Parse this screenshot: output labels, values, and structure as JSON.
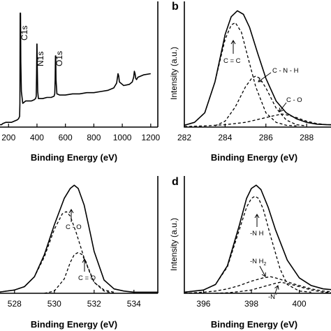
{
  "chart_data": [
    {
      "panel": "",
      "type": "line",
      "xlabel": "Binding Energy (eV)",
      "ylabel": "",
      "xticks": [
        200,
        400,
        600,
        800,
        1000,
        1200
      ],
      "xlim": [
        130,
        1250
      ],
      "ylim": [
        0,
        1
      ],
      "series": [
        {
          "style": "solid",
          "x": [
            130,
            150,
            160,
            180,
            200,
            220,
            240,
            260,
            270,
            278,
            280,
            282,
            284,
            286,
            290,
            300,
            320,
            340,
            360,
            380,
            390,
            395,
            397,
            399,
            400,
            402,
            405,
            410,
            440,
            470,
            500,
            520,
            525,
            528,
            530,
            532,
            534,
            540,
            560,
            600,
            650,
            700,
            750,
            800,
            850,
            900,
            940,
            960,
            965,
            970,
            975,
            980,
            990,
            1000,
            1010,
            1050,
            1070,
            1080,
            1085,
            1090,
            1095,
            1100,
            1110,
            1150,
            1200
          ],
          "y": [
            0.02,
            0.02,
            0.03,
            0.04,
            0.04,
            0.04,
            0.05,
            0.06,
            0.07,
            0.09,
            0.2,
            0.96,
            0.96,
            0.55,
            0.3,
            0.2,
            0.22,
            0.22,
            0.22,
            0.23,
            0.24,
            0.26,
            0.45,
            0.7,
            0.7,
            0.5,
            0.3,
            0.24,
            0.24,
            0.25,
            0.25,
            0.26,
            0.28,
            0.4,
            0.6,
            0.6,
            0.4,
            0.28,
            0.27,
            0.27,
            0.28,
            0.28,
            0.29,
            0.29,
            0.3,
            0.31,
            0.33,
            0.37,
            0.41,
            0.45,
            0.43,
            0.38,
            0.37,
            0.36,
            0.35,
            0.36,
            0.38,
            0.42,
            0.47,
            0.45,
            0.41,
            0.4,
            0.42,
            0.44,
            0.45
          ]
        }
      ],
      "annotations": [
        {
          "text": "C1s",
          "x": 284,
          "y": 0.96
        },
        {
          "text": "N1s",
          "x": 400,
          "y": 0.7
        },
        {
          "text": "O1s",
          "x": 531,
          "y": 0.6
        }
      ]
    },
    {
      "panel": "b",
      "type": "line",
      "xlabel": "Binding Energy (eV)",
      "ylabel": "Intensity (a.u.)",
      "xticks": [
        282,
        284,
        286,
        288
      ],
      "xlim": [
        282,
        289.4
      ],
      "ylim": [
        0,
        1
      ],
      "series": [
        {
          "style": "solid",
          "x": [
            282,
            282.5,
            283,
            283.5,
            284,
            284.3,
            284.6,
            284.9,
            285.2,
            285.6,
            286,
            286.5,
            287,
            287.5,
            288,
            288.5,
            289,
            289.4
          ],
          "y": [
            0.015,
            0.04,
            0.12,
            0.38,
            0.78,
            0.93,
            0.98,
            0.95,
            0.84,
            0.62,
            0.41,
            0.22,
            0.12,
            0.07,
            0.04,
            0.025,
            0.02,
            0.02
          ]
        },
        {
          "style": "dashed",
          "x": [
            282,
            282.5,
            283,
            283.5,
            284,
            284.3,
            284.5,
            284.8,
            285.1,
            285.5,
            286,
            286.5,
            287,
            287.5
          ],
          "y": [
            0.015,
            0.04,
            0.12,
            0.38,
            0.74,
            0.86,
            0.88,
            0.8,
            0.6,
            0.34,
            0.12,
            0.04,
            0.015,
            0.01
          ]
        },
        {
          "style": "dashed",
          "x": [
            283.5,
            284,
            284.5,
            285,
            285.3,
            285.5,
            285.7,
            286,
            286.5,
            287,
            287.5,
            288
          ],
          "y": [
            0.01,
            0.05,
            0.17,
            0.34,
            0.41,
            0.43,
            0.41,
            0.33,
            0.16,
            0.06,
            0.02,
            0.01
          ]
        },
        {
          "style": "dashed",
          "x": [
            282,
            283,
            284,
            285,
            285.5,
            286,
            286.5,
            286.8,
            287.1,
            287.5,
            288,
            288.5,
            289,
            289.4
          ],
          "y": [
            0.005,
            0.01,
            0.02,
            0.04,
            0.06,
            0.08,
            0.1,
            0.11,
            0.1,
            0.08,
            0.05,
            0.03,
            0.02,
            0.015
          ]
        }
      ],
      "annotations": [
        {
          "text": "C = C",
          "x": 284.5,
          "y": 0.62
        },
        {
          "text": "C - N - H",
          "x": 286.6,
          "y": 0.55
        },
        {
          "text": "C - O",
          "x": 287.8,
          "y": 0.24
        }
      ]
    },
    {
      "panel": "",
      "type": "line",
      "xlabel": "Binding Energy (eV)",
      "ylabel": "",
      "xticks": [
        528,
        530,
        532,
        534
      ],
      "xlim": [
        527.2,
        535.2
      ],
      "ylim": [
        0,
        1
      ],
      "series": [
        {
          "style": "solid",
          "x": [
            527.2,
            528,
            528.5,
            529,
            529.5,
            530,
            530.5,
            530.8,
            531,
            531.2,
            531.5,
            531.8,
            532,
            532.5,
            533,
            533.5,
            534,
            535.2
          ],
          "y": [
            0.01,
            0.03,
            0.06,
            0.15,
            0.35,
            0.62,
            0.86,
            0.95,
            0.98,
            0.95,
            0.8,
            0.55,
            0.38,
            0.12,
            0.04,
            0.02,
            0.01,
            0.01
          ]
        },
        {
          "style": "dashed",
          "x": [
            527.2,
            528,
            528.5,
            529,
            529.5,
            530,
            530.4,
            530.6,
            530.8,
            531.1,
            531.5,
            532,
            532.5,
            533
          ],
          "y": [
            0.01,
            0.03,
            0.06,
            0.15,
            0.33,
            0.58,
            0.72,
            0.74,
            0.7,
            0.55,
            0.32,
            0.1,
            0.03,
            0.01
          ]
        },
        {
          "style": "dashed",
          "x": [
            529.5,
            530,
            530.5,
            530.8,
            531,
            531.2,
            531.4,
            531.6,
            531.8,
            532,
            532.5,
            533
          ],
          "y": [
            0.0,
            0.02,
            0.13,
            0.28,
            0.35,
            0.37,
            0.35,
            0.27,
            0.18,
            0.1,
            0.02,
            0.0
          ]
        }
      ],
      "annotations": [
        {
          "text": "C - O",
          "x": 530.6,
          "y": 0.52
        },
        {
          "text": "C = O",
          "x": 531.2,
          "y": 0.18
        }
      ]
    },
    {
      "panel": "d",
      "type": "line",
      "xlabel": "Binding Energy (eV)",
      "ylabel": "Intensity (a.u.)",
      "xticks": [
        396,
        398,
        400
      ],
      "xlim": [
        395.2,
        401.5
      ],
      "ylim": [
        0,
        1
      ],
      "series": [
        {
          "style": "solid",
          "x": [
            395.2,
            396,
            396.5,
            397,
            397.5,
            397.8,
            398,
            398.2,
            398.4,
            398.7,
            399,
            399.5,
            400,
            400.5,
            401,
            401.5
          ],
          "y": [
            0.01,
            0.03,
            0.08,
            0.25,
            0.62,
            0.86,
            0.95,
            0.98,
            0.94,
            0.78,
            0.58,
            0.3,
            0.14,
            0.07,
            0.04,
            0.03
          ]
        },
        {
          "style": "dashed",
          "x": [
            395.2,
            396,
            396.5,
            397,
            397.5,
            397.8,
            398,
            398.15,
            398.3,
            398.5,
            398.8,
            399.2,
            399.5,
            400,
            400.5
          ],
          "y": [
            0.01,
            0.03,
            0.08,
            0.24,
            0.58,
            0.78,
            0.86,
            0.88,
            0.86,
            0.76,
            0.52,
            0.22,
            0.08,
            0.02,
            0.01
          ]
        },
        {
          "style": "dashed",
          "x": [
            395.2,
            396,
            396.5,
            397,
            397.5,
            398,
            398.5,
            398.8,
            399,
            399.3,
            399.7,
            400,
            400.5,
            401,
            401.5
          ],
          "y": [
            0.0,
            0.01,
            0.02,
            0.04,
            0.07,
            0.11,
            0.14,
            0.15,
            0.14,
            0.12,
            0.09,
            0.07,
            0.04,
            0.02,
            0.01
          ]
        },
        {
          "style": "dashed",
          "x": [
            396.5,
            397,
            397.5,
            398,
            398.5,
            399,
            399.2,
            399.5,
            400,
            400.5,
            401,
            401.5
          ],
          "y": [
            0.0,
            0.005,
            0.015,
            0.03,
            0.06,
            0.09,
            0.1,
            0.09,
            0.06,
            0.03,
            0.01,
            0.005
          ]
        }
      ],
      "annotations": [
        {
          "text": "-N H",
          "x": 398.2,
          "y": 0.55
        },
        {
          "text": "-N H",
          "x": 398.8,
          "y": 0.28
        },
        {
          "text": "-N",
          "x": 399.0,
          "y": -0.05
        }
      ]
    }
  ],
  "panels": {
    "a": {
      "xlabel": "Binding Energy (eV)",
      "peaks": [
        "C1s",
        "N1s",
        "O1s"
      ]
    },
    "b": {
      "label": "b",
      "xlabel": "Binding Energy (eV)",
      "ylabel": "Intensity (a.u.)",
      "ann": [
        "C = C",
        "C - N - H",
        "C - O"
      ]
    },
    "c": {
      "xlabel": "Binding Energy (eV)",
      "ann": [
        "C - O",
        "C = O"
      ]
    },
    "d": {
      "label": "d",
      "xlabel": "Binding Energy (eV)",
      "ylabel": "Intensity (a.u.)",
      "ann_nh": "-N H",
      "ann_nh2_base": "-N H",
      "ann_nh2_sub": "2",
      "ann_n": "-N",
      "ann_n_sup": "-"
    }
  }
}
